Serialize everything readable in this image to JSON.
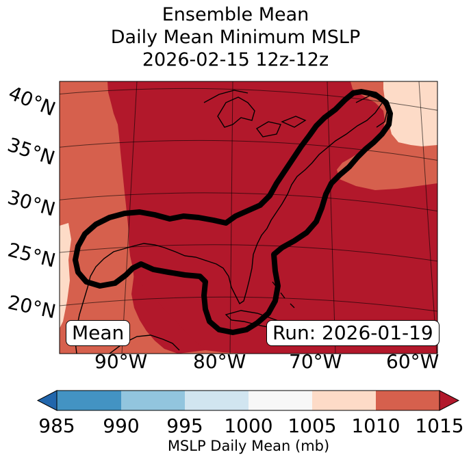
{
  "title": {
    "line1": "Ensemble Mean",
    "line2": "Daily Mean Minimum MSLP",
    "line3": "2026-02-15 12z-12z"
  },
  "latitude_labels": [
    "40°N",
    "35°N",
    "30°N",
    "25°N",
    "20°N"
  ],
  "longitude_labels": [
    "90°W",
    "80°W",
    "70°W",
    "60°W"
  ],
  "mean_box": "Mean",
  "run_box": "Run: 2026-01-19",
  "colorbar": {
    "ticks": [
      "985",
      "990",
      "995",
      "1000",
      "1005",
      "1010",
      "1015"
    ],
    "label": "MSLP Daily Mean (mb)",
    "colors": [
      "#4393c3",
      "#92c5de",
      "#d1e5f0",
      "#f7f7f7",
      "#fddbc7",
      "#d6604d",
      "#b2182b",
      "#2166ac",
      "#b2182b"
    ]
  },
  "palette": {
    "dark_red": "#b2182b",
    "mid_red": "#d6604d",
    "light_peach": "#fddbc7"
  }
}
